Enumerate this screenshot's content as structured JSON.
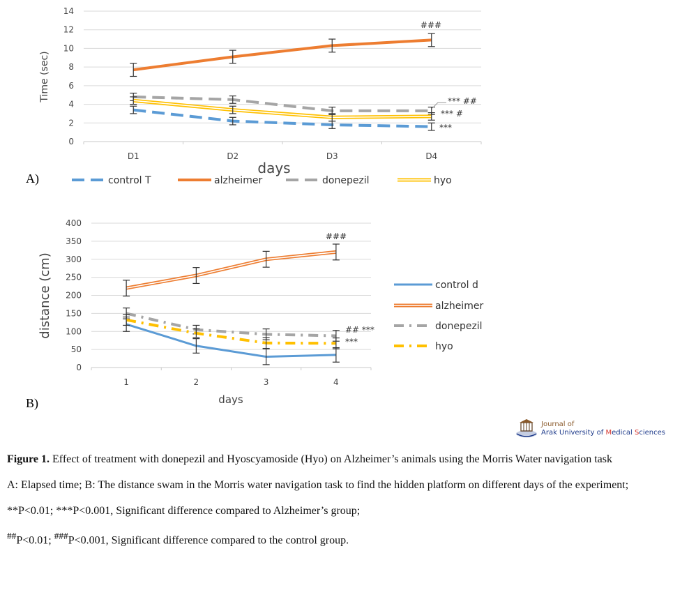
{
  "chart_data": [
    {
      "type": "line",
      "panel": "A)",
      "title": "",
      "xlabel": "days",
      "ylabel": "Time (sec)",
      "ylim": [
        0,
        14
      ],
      "yticks": [
        "0",
        "2",
        "4",
        "6",
        "8",
        "10",
        "12",
        "14"
      ],
      "categories": [
        "D1",
        "D2",
        "D3",
        "D4"
      ],
      "grid": true,
      "legend_position": "bottom",
      "series": [
        {
          "name": "control T",
          "values": [
            3.4,
            2.2,
            1.8,
            1.6
          ],
          "errors": [
            0.4,
            0.4,
            0.4,
            0.4
          ],
          "color": "#5b9bd5",
          "style": "dashed-thick"
        },
        {
          "name": "alzheimer",
          "values": [
            7.7,
            9.1,
            10.3,
            10.9
          ],
          "errors": [
            0.7,
            0.7,
            0.7,
            0.7
          ],
          "color": "#ed7d31",
          "style": "solid-thick"
        },
        {
          "name": "donepezil",
          "values": [
            4.8,
            4.5,
            3.3,
            3.3
          ],
          "errors": [
            0.4,
            0.4,
            0.4,
            0.4
          ],
          "color": "#a5a5a5",
          "style": "dashed-thick"
        },
        {
          "name": "hyo",
          "values": [
            4.4,
            3.4,
            2.6,
            2.7
          ],
          "errors": [
            0.4,
            0.4,
            0.4,
            0.4
          ],
          "color": "#ffc000",
          "style": "double"
        }
      ],
      "annotations": [
        "###",
        "*** ##",
        "*** #",
        "***"
      ]
    },
    {
      "type": "line",
      "panel": "B)",
      "title": "",
      "xlabel": "days",
      "ylabel": "distance (cm)",
      "ylim": [
        0,
        400
      ],
      "yticks": [
        "0",
        "50",
        "100",
        "150",
        "200",
        "250",
        "300",
        "350",
        "400"
      ],
      "categories": [
        "1",
        "2",
        "3",
        "4"
      ],
      "grid": true,
      "legend_position": "right",
      "series": [
        {
          "name": "control d",
          "values": [
            120,
            60,
            30,
            35
          ],
          "errors": [
            20,
            20,
            22,
            20
          ],
          "color": "#5b9bd5",
          "style": "solid"
        },
        {
          "name": "alzheimer",
          "values": [
            220,
            255,
            300,
            320
          ],
          "errors": [
            22,
            22,
            22,
            22
          ],
          "color": "#ed7d31",
          "style": "double"
        },
        {
          "name": "donepezil",
          "values": [
            150,
            105,
            92,
            88
          ],
          "errors": [
            15,
            12,
            15,
            15
          ],
          "color": "#a5a5a5",
          "style": "dash-dot"
        },
        {
          "name": "hyo",
          "values": [
            132,
            95,
            68,
            67
          ],
          "errors": [
            15,
            12,
            15,
            15
          ],
          "color": "#ffc000",
          "style": "dash-dot"
        }
      ],
      "annotations": [
        "###",
        "## ***",
        "***"
      ]
    }
  ],
  "logo": {
    "line1": "Journal of",
    "line2_pre": "Arak University of ",
    "line2_m": "M",
    "line2_mid": "edical ",
    "line2_s": "S",
    "line2_post": "ciences"
  },
  "caption": {
    "line1_bold": "Figure 1.",
    "line1_text": " Effect of treatment with donepezil and Hyoscyamoside (Hyo) on Alzheimer’s animals using the Morris Water navigation task",
    "line2": "A: Elapsed time; B: The distance swam in the Morris water navigation task to find the hidden platform on different days of the experiment;",
    "line3": "**P<0.01; ***P<0.001, Significant difference compared to Alzheimer’s group;",
    "line4_sup1": "##",
    "line4_mid": "P<0.01; ",
    "line4_sup2": "###",
    "line4_end": "P<0.001, Significant difference compared to the control group."
  }
}
